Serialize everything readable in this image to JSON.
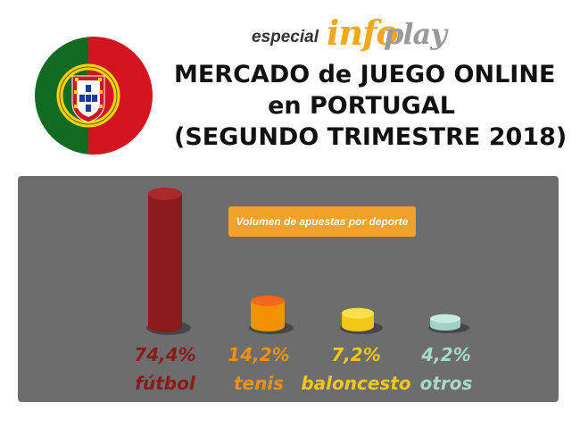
{
  "brand": {
    "prefix": "especial",
    "word1": "info",
    "word2": "play"
  },
  "title": {
    "line1": "MERCADO de JUEGO ONLINE",
    "line2": "en PORTUGAL",
    "line3": "(SEGUNDO TRIMESTRE 2018)"
  },
  "flag": {
    "green": "#116b23",
    "red": "#d2151e"
  },
  "chart_data": {
    "type": "bar",
    "title": "Volumen de apuestas por deporte",
    "categories": [
      "fútbol",
      "tenis",
      "baloncesto",
      "otros"
    ],
    "values": [
      74.4,
      14.2,
      7.2,
      4.2
    ],
    "value_labels": [
      "74,4%",
      "14,2%",
      "7,2%",
      "4,2%"
    ],
    "unit": "%",
    "colors": [
      "#8b1a1d",
      "#f39200",
      "#f1c71a",
      "#9fd3c4"
    ],
    "top_colors": [
      "#a92a2b",
      "#f3671f",
      "#f7e04a",
      "#c8ebe1"
    ],
    "label_colors": [
      "#8b1a1d",
      "#f39200",
      "#f1c71a",
      "#a8d9cb"
    ],
    "ylim": [
      0,
      74.4
    ],
    "grid": false,
    "legend": "top-center"
  }
}
